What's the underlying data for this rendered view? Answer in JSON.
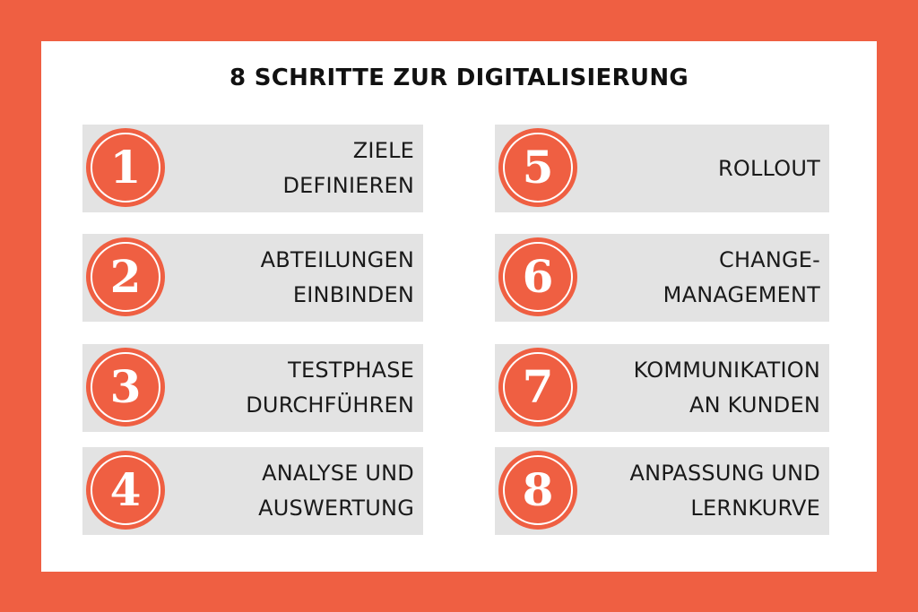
{
  "title": "8 SCHRITTE ZUR DIGITALISIERUNG",
  "colors": {
    "accent": "#EF5F42",
    "card": "#FFFFFF",
    "step_bg": "#E3E3E3",
    "text": "#1A1A1A"
  },
  "steps": [
    {
      "number": "1",
      "line1": "ZIELE",
      "line2": "DEFINIEREN"
    },
    {
      "number": "2",
      "line1": "ABTEILUNGEN",
      "line2": "EINBINDEN"
    },
    {
      "number": "3",
      "line1": "TESTPHASE",
      "line2": "DURCHFÜHREN"
    },
    {
      "number": "4",
      "line1": "ANALYSE UND",
      "line2": "AUSWERTUNG"
    },
    {
      "number": "5",
      "line1": "ROLLOUT",
      "line2": ""
    },
    {
      "number": "6",
      "line1": "CHANGE-",
      "line2": "MANAGEMENT"
    },
    {
      "number": "7",
      "line1": "KOMMUNIKATION",
      "line2": "AN KUNDEN"
    },
    {
      "number": "8",
      "line1": "ANPASSUNG UND",
      "line2": "LERNKURVE"
    }
  ]
}
